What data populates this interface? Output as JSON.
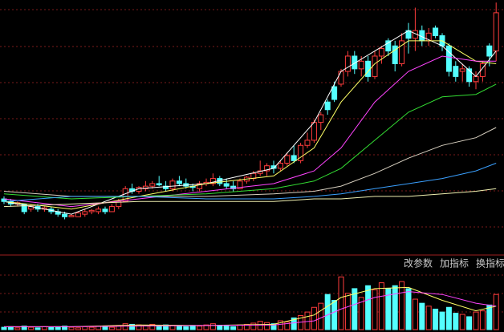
{
  "chart_data": {
    "type": "candlestick",
    "up_color": "#ff3c3c",
    "down_color": "#54ffff",
    "ylim": [
      0,
      100
    ],
    "candles": [
      [
        22,
        23,
        20,
        21
      ],
      [
        21,
        22,
        19,
        20
      ],
      [
        20,
        21,
        19,
        20.5
      ],
      [
        20,
        20,
        16,
        17
      ],
      [
        18,
        20,
        17,
        19
      ],
      [
        19,
        20,
        17,
        18
      ],
      [
        18,
        19,
        17,
        18.5
      ],
      [
        18,
        19,
        16,
        17
      ],
      [
        17,
        18,
        15,
        16
      ],
      [
        16,
        17,
        14,
        15
      ],
      [
        15,
        16,
        15,
        15.5
      ],
      [
        15,
        17,
        15,
        16.5
      ],
      [
        16,
        18,
        15,
        17
      ],
      [
        17,
        18,
        16,
        17.5
      ],
      [
        17,
        19,
        16,
        18
      ],
      [
        18,
        19,
        16,
        17
      ],
      [
        17,
        20,
        17,
        19
      ],
      [
        19,
        22,
        18,
        21
      ],
      [
        21,
        27,
        21,
        26
      ],
      [
        26,
        28,
        24,
        25
      ],
      [
        25,
        27,
        24,
        26.5
      ],
      [
        26,
        29,
        25,
        27
      ],
      [
        27,
        29,
        26,
        28
      ],
      [
        28,
        31,
        27,
        27.5
      ],
      [
        27,
        29,
        25,
        26
      ],
      [
        26,
        30,
        25,
        29
      ],
      [
        29,
        31,
        27,
        28
      ],
      [
        28,
        30,
        26,
        27
      ],
      [
        27,
        28,
        25,
        26.5
      ],
      [
        26,
        29,
        25,
        28
      ],
      [
        28,
        30,
        27,
        28.5
      ],
      [
        28,
        32,
        27,
        30
      ],
      [
        30,
        31,
        27,
        28
      ],
      [
        28,
        30,
        26,
        27
      ],
      [
        27,
        29,
        25,
        26
      ],
      [
        26,
        30,
        26,
        29
      ],
      [
        29,
        31,
        28,
        30.5
      ],
      [
        30,
        33,
        29,
        32
      ],
      [
        32,
        37,
        31,
        33
      ],
      [
        33,
        36,
        31,
        35
      ],
      [
        35,
        37,
        32,
        34
      ],
      [
        34,
        37,
        33,
        36
      ],
      [
        36,
        40,
        35,
        39
      ],
      [
        39,
        43,
        36,
        37
      ],
      [
        37,
        44,
        36,
        43
      ],
      [
        43,
        48,
        42,
        45
      ],
      [
        45,
        53,
        44,
        52
      ],
      [
        52,
        56,
        49,
        55
      ],
      [
        60,
        61,
        55,
        57
      ],
      [
        66,
        68,
        60,
        61
      ],
      [
        67,
        73,
        66,
        72
      ],
      [
        72,
        80,
        70,
        78
      ],
      [
        78,
        80,
        71,
        73
      ],
      [
        73,
        78,
        70,
        76
      ],
      [
        76,
        78,
        68,
        70
      ],
      [
        70,
        80,
        69,
        78
      ],
      [
        78,
        82,
        75,
        81
      ],
      [
        84,
        85,
        78,
        80
      ],
      [
        82,
        84,
        72,
        75
      ],
      [
        75,
        87,
        74,
        84
      ],
      [
        88,
        91,
        79,
        85
      ],
      [
        85,
        97,
        80,
        88
      ],
      [
        88,
        90,
        82,
        84
      ],
      [
        84,
        89,
        82,
        87
      ],
      [
        89,
        90,
        85,
        86
      ],
      [
        86,
        87,
        80,
        82
      ],
      [
        82,
        83,
        70,
        72
      ],
      [
        74,
        76,
        68,
        70
      ],
      [
        72,
        75,
        68,
        73
      ],
      [
        73,
        74,
        66,
        68
      ],
      [
        68,
        72,
        65,
        70
      ],
      [
        70,
        76,
        68,
        75
      ],
      [
        82,
        83,
        74,
        78
      ],
      [
        80,
        99,
        76,
        95
      ]
    ],
    "ma_x": [
      0,
      10,
      20,
      30,
      40,
      46,
      50,
      55,
      60,
      65,
      70,
      73
    ],
    "ma_series": [
      {
        "color": "#ffffff",
        "values": [
          21,
          16,
          26,
          28,
          34,
          52,
          72,
          80,
          88,
          82,
          70,
          80
        ]
      },
      {
        "color": "#ffff66",
        "values": [
          21,
          18,
          23,
          28,
          31,
          42,
          60,
          75,
          84,
          84,
          76,
          75
        ]
      },
      {
        "color": "#ff44ff",
        "values": [
          22,
          19,
          22,
          25,
          28,
          33,
          42,
          60,
          72,
          78,
          76,
          76
        ]
      },
      {
        "color": "#33dd33",
        "values": [
          24,
          22,
          23,
          24,
          26,
          29,
          34,
          45,
          56,
          62,
          63,
          67
        ]
      },
      {
        "color": "#d8d0c0",
        "values": [
          25,
          23,
          23,
          23,
          24,
          25,
          27,
          32,
          38,
          43,
          46,
          50
        ]
      },
      {
        "color": "#3aa0ff",
        "values": [
          21,
          23,
          23,
          22,
          22,
          23,
          24,
          26,
          28,
          30,
          33,
          36
        ]
      },
      {
        "color": "#f0f0b0",
        "values": [
          19,
          20,
          21,
          21,
          21,
          22,
          22,
          23,
          23,
          24,
          25,
          26
        ]
      }
    ],
    "volume_ylim": [
      0,
      100
    ],
    "volume_values": [
      4,
      5,
      3,
      6,
      4,
      3,
      5,
      4,
      5,
      6,
      4,
      3,
      5,
      4,
      6,
      5,
      4,
      7,
      10,
      9,
      8,
      7,
      9,
      6,
      8,
      7,
      6,
      5,
      7,
      6,
      8,
      10,
      7,
      6,
      5,
      8,
      9,
      11,
      14,
      12,
      10,
      15,
      13,
      20,
      24,
      30,
      38,
      45,
      60,
      50,
      90,
      62,
      70,
      55,
      75,
      68,
      80,
      70,
      75,
      82,
      70,
      52,
      45,
      40,
      35,
      30,
      38,
      28,
      26,
      22,
      30,
      32,
      42,
      60
    ],
    "volume_ma": [
      {
        "color": "#ffff66",
        "values": [
          5,
          5,
          8,
          7,
          9,
          25,
          55,
          70,
          72,
          50,
          32,
          40
        ]
      },
      {
        "color": "#ff44ff",
        "values": [
          5,
          5,
          6,
          7,
          8,
          15,
          35,
          55,
          65,
          60,
          45,
          40
        ]
      }
    ],
    "tool_buttons": [
      "改参数",
      "加指标",
      "换指标"
    ]
  }
}
